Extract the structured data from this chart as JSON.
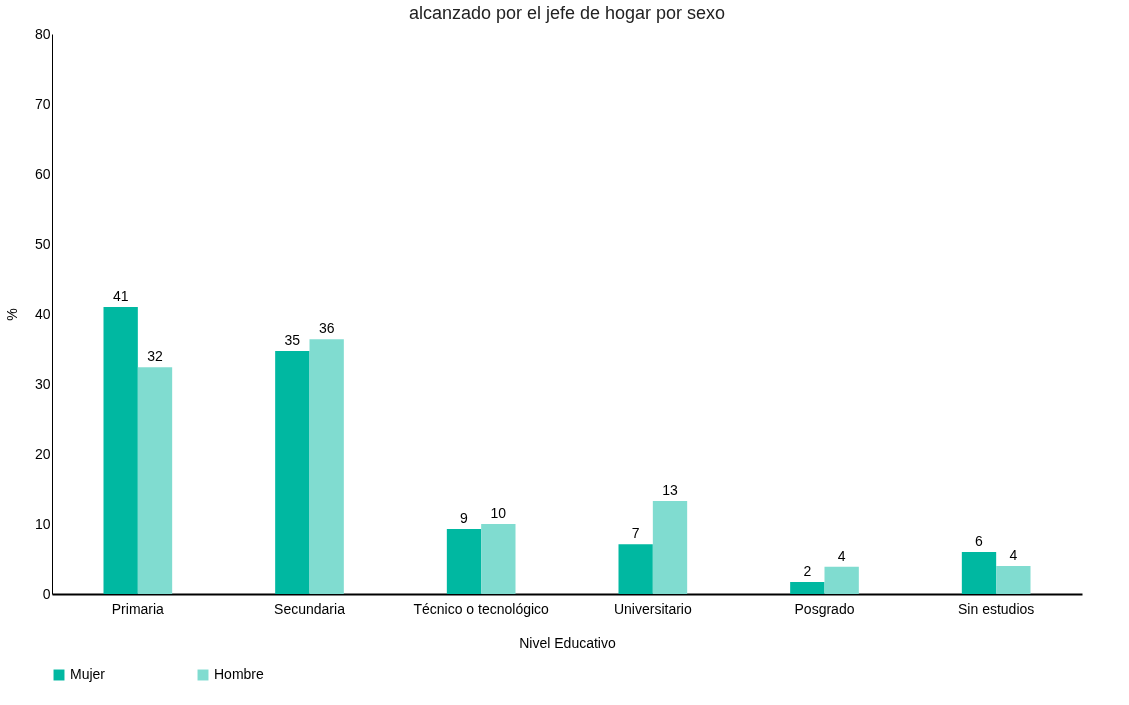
{
  "chart_data": {
    "type": "bar",
    "title": "alcanzado por el jefe de hogar por sexo",
    "xlabel": "Nivel Educativo",
    "ylabel": "%",
    "categories": [
      "Primaria",
      "Secundaria",
      "Técnico o tecnológico",
      "Universitario",
      "Posgrado",
      "Sin estudios"
    ],
    "series": [
      {
        "name": "Mujer",
        "color": "#00b8a1",
        "values": [
          41.0,
          34.7,
          9.3,
          7.1,
          1.7,
          6.0
        ],
        "value_labels": [
          "41",
          "35",
          "9",
          "7",
          "2",
          "6"
        ]
      },
      {
        "name": "Hombre",
        "color": "#80dcd0",
        "values": [
          32.4,
          36.4,
          10.0,
          13.3,
          3.9,
          4.0
        ],
        "value_labels": [
          "32",
          "36",
          "10",
          "13",
          "4",
          "4"
        ]
      }
    ],
    "ylim": [
      0,
      80
    ],
    "yticks": [
      0,
      10,
      20,
      30,
      40,
      50,
      60,
      70,
      80
    ],
    "grid": false,
    "legend": "bottom"
  }
}
